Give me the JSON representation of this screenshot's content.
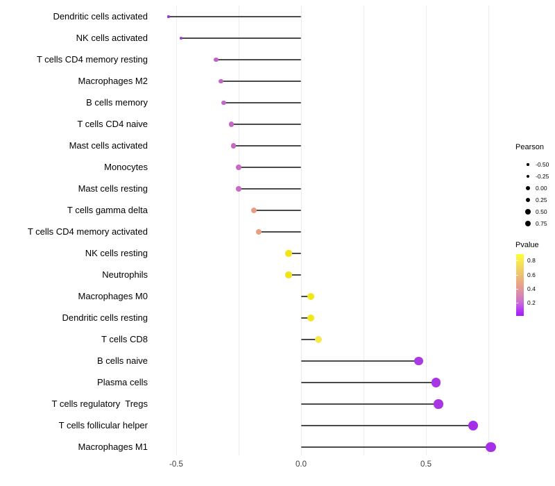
{
  "chart_data": {
    "type": "lollipop",
    "orientation": "horizontal",
    "title": "",
    "xlabel": "",
    "ylabel": "",
    "x_axis": {
      "tick_labels": [
        "-0.5",
        "0.0",
        "0.5"
      ],
      "tick_values": [
        -0.5,
        0.0,
        0.5
      ],
      "gridline_values": [
        -0.5,
        -0.25,
        0.0,
        0.25,
        0.5,
        0.75
      ],
      "range": [
        -0.595,
        0.825
      ],
      "grid": "on"
    },
    "rows": [
      {
        "label": "Dendritic cells activated",
        "pearson": -0.53,
        "pvalue_from_color": 0.02,
        "color": "#9E2FD8"
      },
      {
        "label": "NK cells activated",
        "pearson": -0.48,
        "pvalue_from_color": 0.04,
        "color": "#A331DC"
      },
      {
        "label": "T cells CD4 memory resting",
        "pearson": -0.34,
        "pvalue_from_color": 0.15,
        "color": "#C260C9"
      },
      {
        "label": "Macrophages M2",
        "pearson": -0.32,
        "pvalue_from_color": 0.16,
        "color": "#C363C8"
      },
      {
        "label": "B cells memory",
        "pearson": -0.31,
        "pvalue_from_color": 0.17,
        "color": "#C465C7"
      },
      {
        "label": "T cells CD4 naive",
        "pearson": -0.28,
        "pvalue_from_color": 0.2,
        "color": "#C667C5"
      },
      {
        "label": "Mast cells activated",
        "pearson": -0.27,
        "pvalue_from_color": 0.21,
        "color": "#C768C4"
      },
      {
        "label": "Monocytes",
        "pearson": -0.25,
        "pvalue_from_color": 0.24,
        "color": "#C96BC2"
      },
      {
        "label": "Mast cells resting",
        "pearson": -0.25,
        "pvalue_from_color": 0.25,
        "color": "#CA6CC1"
      },
      {
        "label": "T cells gamma delta",
        "pearson": -0.19,
        "pvalue_from_color": 0.5,
        "color": "#E89C80"
      },
      {
        "label": "T cells CD4 memory activated",
        "pearson": -0.17,
        "pvalue_from_color": 0.52,
        "color": "#EA9F7D"
      },
      {
        "label": "NK cells resting",
        "pearson": -0.05,
        "pvalue_from_color": 0.8,
        "color": "#F2E414"
      },
      {
        "label": "Neutrophils",
        "pearson": -0.05,
        "pvalue_from_color": 0.8,
        "color": "#F2E414"
      },
      {
        "label": "Macrophages M0",
        "pearson": 0.04,
        "pvalue_from_color": 0.84,
        "color": "#F4E61C"
      },
      {
        "label": "Dendritic cells resting",
        "pearson": 0.04,
        "pvalue_from_color": 0.84,
        "color": "#F4E61C"
      },
      {
        "label": "T cells CD8",
        "pearson": 0.07,
        "pvalue_from_color": 0.88,
        "color": "#F6E84E"
      },
      {
        "label": "B cells naive",
        "pearson": 0.47,
        "pvalue_from_color": 0.03,
        "color": "#A93BE2"
      },
      {
        "label": "Plasma cells",
        "pearson": 0.54,
        "pvalue_from_color": 0.02,
        "color": "#A836E4"
      },
      {
        "label": "T cells regulatory  Tregs",
        "pearson": 0.55,
        "pvalue_from_color": 0.02,
        "color": "#A836E4"
      },
      {
        "label": "T cells follicular helper",
        "pearson": 0.69,
        "pvalue_from_color": 0.01,
        "color": "#A52FE8"
      },
      {
        "label": "Macrophages M1",
        "pearson": 0.76,
        "pvalue_from_color": 0.005,
        "color": "#A82FEA"
      }
    ],
    "legends": {
      "size": {
        "title": "Pearson",
        "entries": [
          {
            "label": "-0.50"
          },
          {
            "label": "-0.25"
          },
          {
            "label": "0.00"
          },
          {
            "label": "0.25"
          },
          {
            "label": "0.50"
          },
          {
            "label": "0.75"
          }
        ],
        "position": "right"
      },
      "color": {
        "title": "Pvalue",
        "tick_labels": [
          "0.8",
          "0.6",
          "0.4",
          "0.2"
        ],
        "tick_values": [
          0.8,
          0.6,
          0.4,
          0.2
        ],
        "bar_range_top_to_bottom": [
          0.9,
          0.05
        ],
        "gradient_stops_top_to_bottom": [
          {
            "pos": "0%",
            "color": "#FFFF30"
          },
          {
            "pos": "8%",
            "color": "#FBF04A"
          },
          {
            "pos": "20%",
            "color": "#F3D95F"
          },
          {
            "pos": "35%",
            "color": "#EDBE72"
          },
          {
            "pos": "48%",
            "color": "#E7A687"
          },
          {
            "pos": "60%",
            "color": "#E091A0"
          },
          {
            "pos": "70%",
            "color": "#D67FBC"
          },
          {
            "pos": "80%",
            "color": "#C867DC"
          },
          {
            "pos": "90%",
            "color": "#B53BF1"
          },
          {
            "pos": "100%",
            "color": "#A618FD"
          }
        ],
        "position": "right"
      }
    },
    "colors": {
      "background": "#FFFFFF",
      "gridline": "#ECECEC",
      "stem": "#4A4A4A",
      "axis_text": "#3C3C3C",
      "label_text": "#000000",
      "legend_dot": "#000000"
    }
  }
}
